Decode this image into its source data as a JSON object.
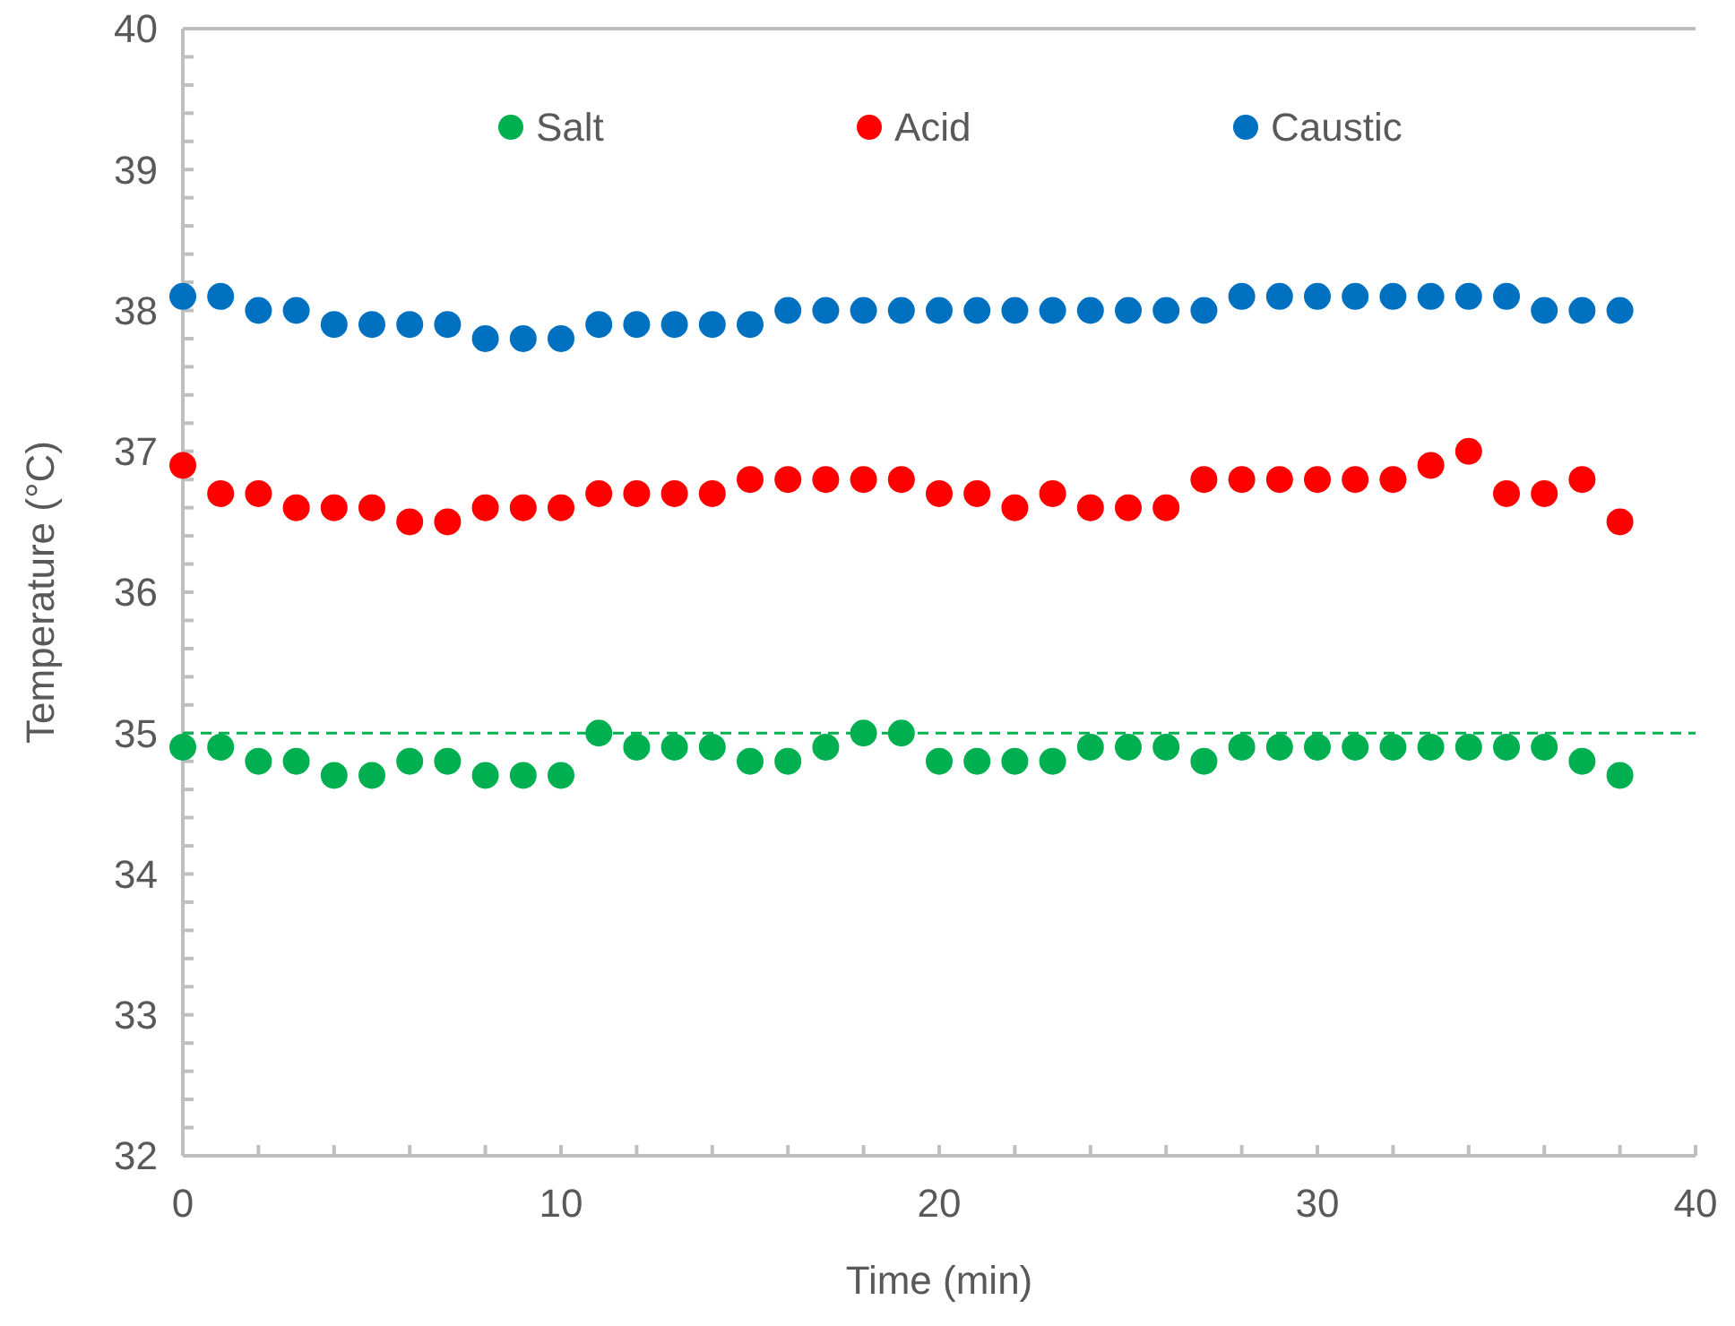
{
  "chart_data": {
    "type": "scatter",
    "xlabel": "Time (min)",
    "ylabel": "Temperature (°C)",
    "x": [
      0,
      1,
      2,
      3,
      4,
      5,
      6,
      7,
      8,
      9,
      10,
      11,
      12,
      13,
      14,
      15,
      16,
      17,
      18,
      19,
      20,
      21,
      22,
      23,
      24,
      25,
      26,
      27,
      28,
      29,
      30,
      31,
      32,
      33,
      34,
      35,
      36,
      37,
      38
    ],
    "series": [
      {
        "name": "Salt",
        "color": "#00b050",
        "values": [
          34.9,
          34.9,
          34.8,
          34.8,
          34.7,
          34.7,
          34.8,
          34.8,
          34.7,
          34.7,
          34.7,
          35.0,
          34.9,
          34.9,
          34.9,
          34.8,
          34.8,
          34.9,
          35.0,
          35.0,
          34.8,
          34.8,
          34.8,
          34.8,
          34.9,
          34.9,
          34.9,
          34.8,
          34.9,
          34.9,
          34.9,
          34.9,
          34.9,
          34.9,
          34.9,
          34.9,
          34.9,
          34.8,
          34.7
        ]
      },
      {
        "name": "Acid",
        "color": "#ff0000",
        "values": [
          36.9,
          36.7,
          36.7,
          36.6,
          36.6,
          36.6,
          36.5,
          36.5,
          36.6,
          36.6,
          36.6,
          36.7,
          36.7,
          36.7,
          36.7,
          36.8,
          36.8,
          36.8,
          36.8,
          36.8,
          36.7,
          36.7,
          36.6,
          36.7,
          36.6,
          36.6,
          36.6,
          36.8,
          36.8,
          36.8,
          36.8,
          36.8,
          36.8,
          36.9,
          37.0,
          36.7,
          36.7,
          36.8,
          36.5
        ]
      },
      {
        "name": "Caustic",
        "color": "#0070c0",
        "values": [
          38.1,
          38.1,
          38.0,
          38.0,
          37.9,
          37.9,
          37.9,
          37.9,
          37.8,
          37.8,
          37.8,
          37.9,
          37.9,
          37.9,
          37.9,
          37.9,
          38.0,
          38.0,
          38.0,
          38.0,
          38.0,
          38.0,
          38.0,
          38.0,
          38.0,
          38.0,
          38.0,
          38.0,
          38.1,
          38.1,
          38.1,
          38.1,
          38.1,
          38.1,
          38.1,
          38.1,
          38.0,
          38.0,
          38.0
        ]
      }
    ],
    "xlim": [
      0,
      40
    ],
    "ylim": [
      32,
      40
    ],
    "xticks": [
      0,
      {
        "value": 2,
        "label": null
      },
      {
        "value": 4,
        "label": null
      },
      {
        "value": 6,
        "label": null
      },
      {
        "value": 8,
        "label": null
      },
      10,
      {
        "value": 12,
        "label": null
      },
      {
        "value": 14,
        "label": null
      },
      {
        "value": 16,
        "label": null
      },
      {
        "value": 18,
        "label": null
      },
      20,
      {
        "value": 22,
        "label": null
      },
      {
        "value": 24,
        "label": null
      },
      {
        "value": 26,
        "label": null
      },
      {
        "value": 28,
        "label": null
      },
      30,
      {
        "value": 32,
        "label": null
      },
      {
        "value": 34,
        "label": null
      },
      {
        "value": 36,
        "label": null
      },
      {
        "value": 38,
        "label": null
      },
      40
    ],
    "yticks": [
      32,
      {
        "value": 32.2,
        "label": null
      },
      {
        "value": 32.4,
        "label": null
      },
      {
        "value": 32.6,
        "label": null
      },
      {
        "value": 32.8,
        "label": null
      },
      33,
      {
        "value": 33.2,
        "label": null
      },
      {
        "value": 33.4,
        "label": null
      },
      {
        "value": 33.6,
        "label": null
      },
      {
        "value": 33.8,
        "label": null
      },
      34,
      {
        "value": 34.2,
        "label": null
      },
      {
        "value": 34.4,
        "label": null
      },
      {
        "value": 34.6,
        "label": null
      },
      {
        "value": 34.8,
        "label": null
      },
      35,
      {
        "value": 35.2,
        "label": null
      },
      {
        "value": 35.4,
        "label": null
      },
      {
        "value": 35.6,
        "label": null
      },
      {
        "value": 35.8,
        "label": null
      },
      36,
      {
        "value": 36.2,
        "label": null
      },
      {
        "value": 36.4,
        "label": null
      },
      {
        "value": 36.6,
        "label": null
      },
      {
        "value": 36.8,
        "label": null
      },
      37,
      {
        "value": 37.2,
        "label": null
      },
      {
        "value": 37.4,
        "label": null
      },
      {
        "value": 37.6,
        "label": null
      },
      {
        "value": 37.8,
        "label": null
      },
      38,
      {
        "value": 38.2,
        "label": null
      },
      {
        "value": 38.4,
        "label": null
      },
      {
        "value": 38.6,
        "label": null
      },
      {
        "value": 38.8,
        "label": null
      },
      39,
      {
        "value": 39.2,
        "label": null
      },
      {
        "value": 39.4,
        "label": null
      },
      {
        "value": 39.6,
        "label": null
      },
      {
        "value": 39.8,
        "label": null
      },
      40
    ],
    "ref_lines": [
      {
        "axis": "y",
        "value": 35,
        "color": "#00b050",
        "line_style": "dashed"
      }
    ],
    "marker": "circle",
    "grid": false,
    "legend": "top"
  }
}
